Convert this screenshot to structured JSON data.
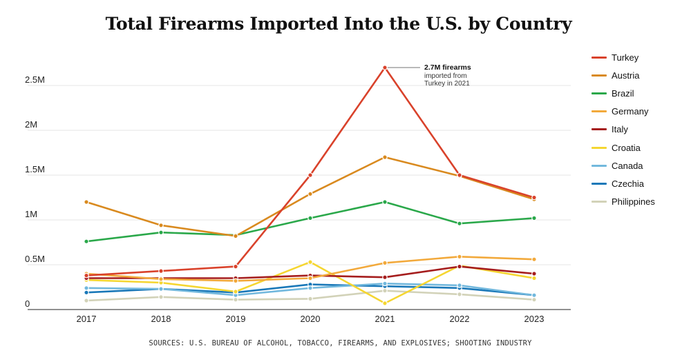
{
  "chart_data": {
    "type": "line",
    "title": "Total Firearms Imported Into the U.S. by Country",
    "source": "SOURCES: U.S. BUREAU OF ALCOHOL, TOBACCO, FIREARMS, AND EXPLOSIVES; SHOOTING INDUSTRY",
    "xlabel": "",
    "ylabel": "",
    "ylim": [
      0,
      3000000
    ],
    "yticks": [
      {
        "value": 0,
        "label": "0"
      },
      {
        "value": 500000,
        "label": "0.5M"
      },
      {
        "value": 1000000,
        "label": "1M"
      },
      {
        "value": 1500000,
        "label": "1.5M"
      },
      {
        "value": 2000000,
        "label": "2M"
      },
      {
        "value": 2500000,
        "label": "2.5M"
      }
    ],
    "grid": true,
    "legend_position": "right",
    "categories": [
      "2017",
      "2018",
      "2019",
      "2020",
      "2021",
      "2022",
      "2023"
    ],
    "annotation": {
      "series": "Turkey",
      "category": "2021",
      "bold": "2.7M firearms",
      "lines": [
        "imported from",
        "Turkey in 2021"
      ]
    },
    "series": [
      {
        "name": "Turkey",
        "color": "#d9422b",
        "values": [
          380000,
          430000,
          480000,
          1500000,
          2700000,
          1500000,
          1250000
        ]
      },
      {
        "name": "Austria",
        "color": "#d98a1f",
        "values": [
          1200000,
          940000,
          820000,
          1290000,
          1700000,
          1490000,
          1230000
        ]
      },
      {
        "name": "Brazil",
        "color": "#2aa84a",
        "values": [
          760000,
          860000,
          830000,
          1020000,
          1200000,
          960000,
          1020000
        ]
      },
      {
        "name": "Germany",
        "color": "#f2a93b",
        "values": [
          400000,
          340000,
          320000,
          350000,
          520000,
          590000,
          560000
        ]
      },
      {
        "name": "Italy",
        "color": "#a51d1d",
        "values": [
          350000,
          350000,
          350000,
          380000,
          360000,
          480000,
          400000
        ]
      },
      {
        "name": "Croatia",
        "color": "#f5d631",
        "values": [
          330000,
          300000,
          200000,
          530000,
          70000,
          490000,
          350000
        ]
      },
      {
        "name": "Canada",
        "color": "#72b8dd",
        "values": [
          240000,
          230000,
          160000,
          240000,
          290000,
          270000,
          160000
        ]
      },
      {
        "name": "Czechia",
        "color": "#1a78b8",
        "values": [
          190000,
          230000,
          190000,
          280000,
          260000,
          240000,
          160000
        ]
      },
      {
        "name": "Philippines",
        "color": "#d2d2b8",
        "values": [
          100000,
          140000,
          110000,
          120000,
          210000,
          170000,
          110000
        ]
      }
    ]
  }
}
